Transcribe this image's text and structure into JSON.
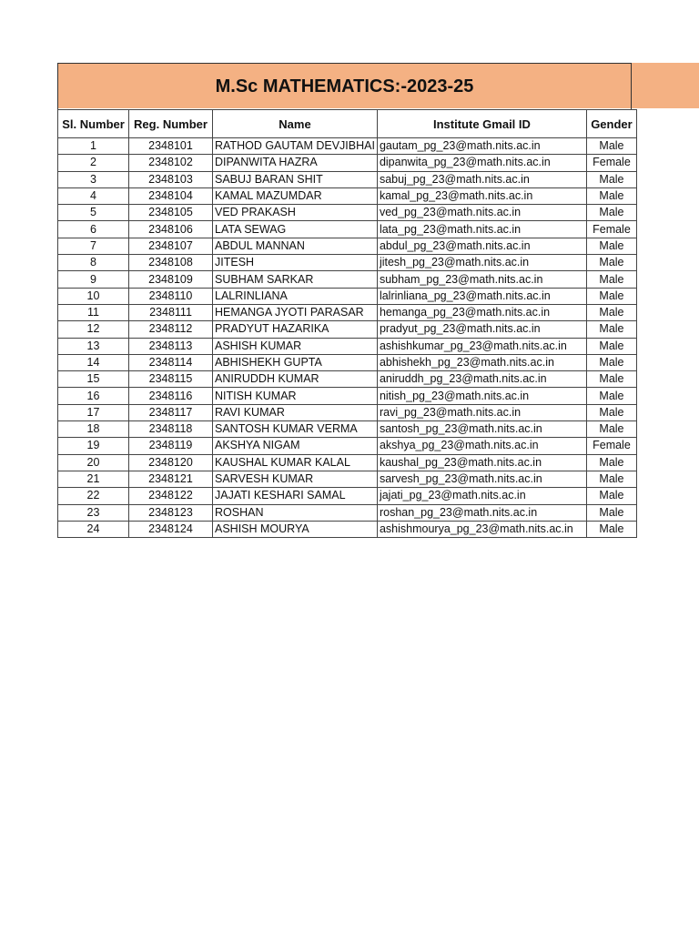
{
  "title": "M.Sc MATHEMATICS:-2023-25",
  "colors": {
    "title_band": "#f4b183"
  },
  "headers": [
    "Sl. Number",
    "Reg. Number",
    "Name",
    "Institute Gmail ID",
    "Gender"
  ],
  "rows": [
    [
      "1",
      "2348101",
      "RATHOD GAUTAM DEVJIBHAI",
      "gautam_pg_23@math.nits.ac.in",
      "Male"
    ],
    [
      "2",
      "2348102",
      "DIPANWITA HAZRA",
      "dipanwita_pg_23@math.nits.ac.in",
      "Female"
    ],
    [
      "3",
      "2348103",
      "SABUJ BARAN SHIT",
      "sabuj_pg_23@math.nits.ac.in",
      "Male"
    ],
    [
      "4",
      "2348104",
      "KAMAL MAZUMDAR",
      "kamal_pg_23@math.nits.ac.in",
      "Male"
    ],
    [
      "5",
      "2348105",
      "VED PRAKASH",
      "ved_pg_23@math.nits.ac.in",
      "Male"
    ],
    [
      "6",
      "2348106",
      "LATA SEWAG",
      "lata_pg_23@math.nits.ac.in",
      "Female"
    ],
    [
      "7",
      "2348107",
      "ABDUL MANNAN",
      "abdul_pg_23@math.nits.ac.in",
      "Male"
    ],
    [
      "8",
      "2348108",
      "JITESH",
      "jitesh_pg_23@math.nits.ac.in",
      "Male"
    ],
    [
      "9",
      "2348109",
      "SUBHAM SARKAR",
      "subham_pg_23@math.nits.ac.in",
      "Male"
    ],
    [
      "10",
      "2348110",
      "LALRINLIANA",
      "lalrinliana_pg_23@math.nits.ac.in",
      "Male"
    ],
    [
      "11",
      "2348111",
      "HEMANGA JYOTI PARASAR",
      "hemanga_pg_23@math.nits.ac.in",
      "Male"
    ],
    [
      "12",
      "2348112",
      "PRADYUT HAZARIKA",
      "pradyut_pg_23@math.nits.ac.in",
      "Male"
    ],
    [
      "13",
      "2348113",
      "ASHISH KUMAR",
      "ashishkumar_pg_23@math.nits.ac.in",
      "Male"
    ],
    [
      "14",
      "2348114",
      "ABHISHEKH GUPTA",
      "abhishekh_pg_23@math.nits.ac.in",
      "Male"
    ],
    [
      "15",
      "2348115",
      "ANIRUDDH KUMAR",
      "aniruddh_pg_23@math.nits.ac.in",
      "Male"
    ],
    [
      "16",
      "2348116",
      "NITISH KUMAR",
      "nitish_pg_23@math.nits.ac.in",
      "Male"
    ],
    [
      "17",
      "2348117",
      "RAVI KUMAR",
      "ravi_pg_23@math.nits.ac.in",
      "Male"
    ],
    [
      "18",
      "2348118",
      "SANTOSH KUMAR VERMA",
      "santosh_pg_23@math.nits.ac.in",
      "Male"
    ],
    [
      "19",
      "2348119",
      "AKSHYA NIGAM",
      "akshya_pg_23@math.nits.ac.in",
      "Female"
    ],
    [
      "20",
      "2348120",
      "KAUSHAL KUMAR KALAL",
      "kaushal_pg_23@math.nits.ac.in",
      "Male"
    ],
    [
      "21",
      "2348121",
      "SARVESH KUMAR",
      "sarvesh_pg_23@math.nits.ac.in",
      "Male"
    ],
    [
      "22",
      "2348122",
      "JAJATI KESHARI SAMAL",
      "jajati_pg_23@math.nits.ac.in",
      "Male"
    ],
    [
      "23",
      "2348123",
      "ROSHAN",
      "roshan_pg_23@math.nits.ac.in",
      "Male"
    ],
    [
      "24",
      "2348124",
      "ASHISH MOURYA",
      "ashishmourya_pg_23@math.nits.ac.in",
      "Male"
    ]
  ]
}
